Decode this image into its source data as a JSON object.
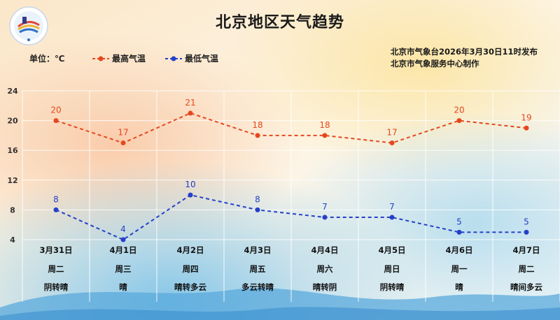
{
  "title": "北京地区天气趋势",
  "unit_label": "单位：℃",
  "legend": {
    "high": "最高气温",
    "low": "最低气温"
  },
  "issuer": {
    "line1": "北京市气象台2026年3月30日11时发布",
    "line2": "北京市气象服务中心制作"
  },
  "logo_icon": "beijing-meteorological-logo-icon",
  "colors": {
    "high": "#e5481f",
    "low": "#2540c8"
  },
  "chart_data": {
    "type": "line",
    "title": "北京地区天气趋势",
    "ylabel": "单位：℃",
    "ylim": [
      4,
      24
    ],
    "yticks": [
      4,
      8,
      12,
      16,
      20,
      24
    ],
    "grid": true,
    "legend_position": "top-left",
    "categories": [
      "3月31日",
      "4月1日",
      "4月2日",
      "4月3日",
      "4月4日",
      "4月5日",
      "4月6日",
      "4月7日"
    ],
    "weekdays": [
      "周二",
      "周三",
      "周四",
      "周五",
      "周六",
      "周日",
      "周一",
      "周二"
    ],
    "weather": [
      "阴转晴",
      "晴",
      "晴转多云",
      "多云转晴",
      "晴转阴",
      "阴转晴",
      "晴",
      "晴间多云"
    ],
    "series": [
      {
        "name": "最高气温",
        "values": [
          20,
          17,
          21,
          18,
          18,
          17,
          20,
          19
        ]
      },
      {
        "name": "最低气温",
        "values": [
          8,
          4,
          10,
          8,
          7,
          7,
          5,
          5
        ]
      }
    ]
  }
}
